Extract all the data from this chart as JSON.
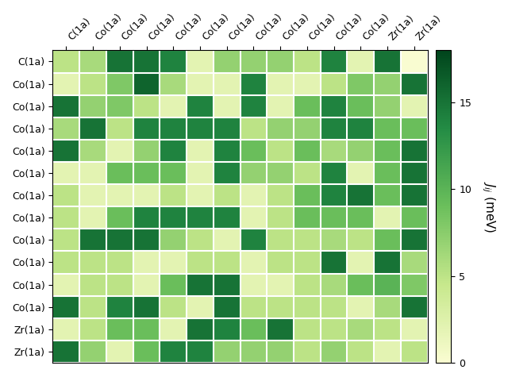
{
  "row_labels": [
    "C(1a)",
    "Co(1a)",
    "Co(1a)",
    "Co(1a)",
    "Co(1a)",
    "Co(1a)",
    "Co(1a)",
    "Co(1a)",
    "Co(1a)",
    "Co(1a)",
    "Co(1a)",
    "Co(1a)",
    "Zr(1a)",
    "Zr(1a)"
  ],
  "col_labels": [
    "C(1a)",
    "Co(1a)",
    "Co(1a)",
    "Co(1a)",
    "Co(1a)",
    "Co(1a)",
    "Co(1a)",
    "Co(1a)",
    "Co(1a)",
    "Co(1a)",
    "Co(1a)",
    "Co(1a)",
    "Zr(1a)",
    "Zr(1a)"
  ],
  "data": [
    [
      5,
      6,
      15,
      15,
      14,
      2,
      7,
      7,
      7,
      5,
      14,
      2,
      15,
      0
    ],
    [
      2,
      5,
      8,
      16,
      6,
      2,
      2,
      14,
      2,
      2,
      5,
      8,
      7,
      15
    ],
    [
      15,
      7,
      8,
      5,
      2,
      14,
      2,
      14,
      2,
      9,
      14,
      9,
      7,
      2
    ],
    [
      6,
      15,
      5,
      14,
      14,
      14,
      14,
      5,
      7,
      7,
      14,
      14,
      9,
      9
    ],
    [
      15,
      6,
      2,
      7,
      14,
      2,
      14,
      9,
      5,
      9,
      6,
      7,
      9,
      15
    ],
    [
      2,
      2,
      9,
      9,
      9,
      2,
      14,
      7,
      7,
      5,
      14,
      2,
      9,
      15
    ],
    [
      5,
      2,
      2,
      2,
      5,
      2,
      5,
      2,
      5,
      9,
      14,
      15,
      9,
      15
    ],
    [
      5,
      2,
      9,
      14,
      14,
      14,
      14,
      2,
      5,
      9,
      9,
      9,
      2,
      9
    ],
    [
      5,
      15,
      15,
      15,
      7,
      5,
      2,
      14,
      5,
      5,
      6,
      5,
      9,
      15
    ],
    [
      5,
      5,
      5,
      2,
      2,
      5,
      5,
      2,
      5,
      5,
      15,
      2,
      15,
      6
    ],
    [
      2,
      5,
      5,
      2,
      9,
      15,
      15,
      2,
      2,
      5,
      6,
      9,
      10,
      8
    ],
    [
      15,
      5,
      14,
      15,
      5,
      2,
      15,
      5,
      5,
      5,
      5,
      2,
      6,
      15
    ],
    [
      2,
      5,
      9,
      9,
      2,
      15,
      14,
      9,
      15,
      5,
      5,
      6,
      5,
      2
    ],
    [
      15,
      7,
      2,
      9,
      14,
      14,
      7,
      7,
      7,
      5,
      7,
      5,
      2,
      5
    ]
  ],
  "vmin": 0,
  "vmax": 18,
  "cbar_label": "$J_{ij}$ (meV)",
  "cbar_ticks": [
    0,
    5,
    10,
    15
  ],
  "figsize": [
    6.4,
    4.8
  ],
  "dpi": 100
}
